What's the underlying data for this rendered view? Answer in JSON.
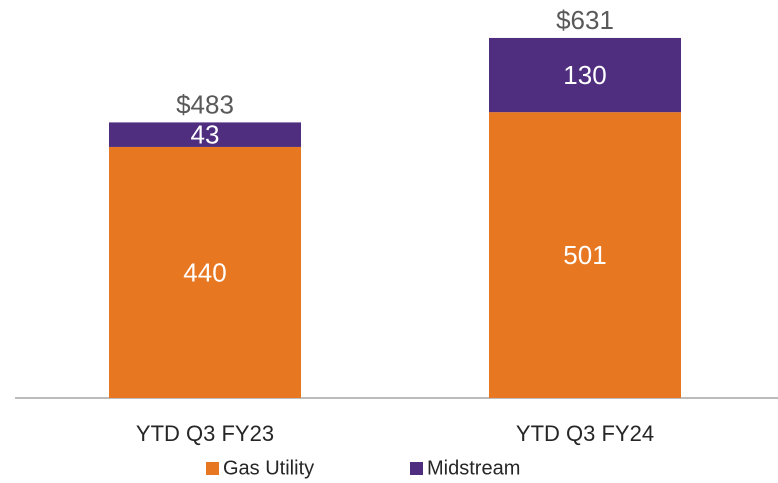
{
  "chart_data": {
    "type": "stacked_bar",
    "categories": [
      "YTD Q3 FY23",
      "YTD Q3 FY24"
    ],
    "series": [
      {
        "name": "Gas Utility",
        "color": "#e87722",
        "values": [
          440,
          501
        ]
      },
      {
        "name": "Midstream",
        "color": "#4f2d7f",
        "values": [
          43,
          130
        ]
      }
    ],
    "total_labels": [
      "$483",
      "$631"
    ],
    "ylim": [
      0,
      680
    ]
  }
}
